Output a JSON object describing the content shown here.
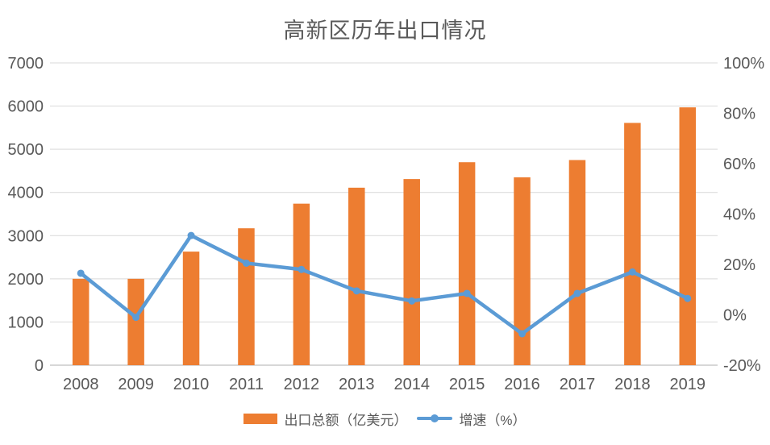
{
  "title": "高新区历年出口情况",
  "chart_data": {
    "type": "combo-bar-line",
    "title": "高新区历年出口情况",
    "categories": [
      "2008",
      "2009",
      "2010",
      "2011",
      "2012",
      "2013",
      "2014",
      "2015",
      "2016",
      "2017",
      "2018",
      "2019"
    ],
    "series": [
      {
        "name": "出口总额（亿美元）",
        "type": "bar",
        "axis": "left",
        "color": "#ED7D31",
        "values": [
          2000,
          2000,
          2630,
          3170,
          3740,
          4110,
          4310,
          4700,
          4350,
          4750,
          5610,
          5970
        ]
      },
      {
        "name": "增速（%）",
        "type": "line",
        "axis": "right",
        "color": "#5B9BD5",
        "values": [
          16.5,
          -1,
          31.5,
          20.5,
          18,
          9.5,
          5.5,
          8.5,
          -7.5,
          8.5,
          17,
          6.5
        ]
      }
    ],
    "left_axis": {
      "min": 0,
      "max": 7000,
      "step": 1000,
      "suffix": ""
    },
    "right_axis": {
      "min": -20,
      "max": 100,
      "step": 20,
      "suffix": "%"
    },
    "grid": true,
    "legend_position": "bottom"
  },
  "legend": {
    "items": [
      {
        "label": "出口总额（亿美元）",
        "type": "bar",
        "color": "#ED7D31"
      },
      {
        "label": "增速（%）",
        "type": "line",
        "color": "#5B9BD5"
      }
    ]
  },
  "colors": {
    "bar": "#ED7D31",
    "line": "#5B9BD5",
    "grid": "#D9D9D9",
    "axis": "#BFBFBF",
    "tick_text": "#595959",
    "title_text": "#595959"
  }
}
